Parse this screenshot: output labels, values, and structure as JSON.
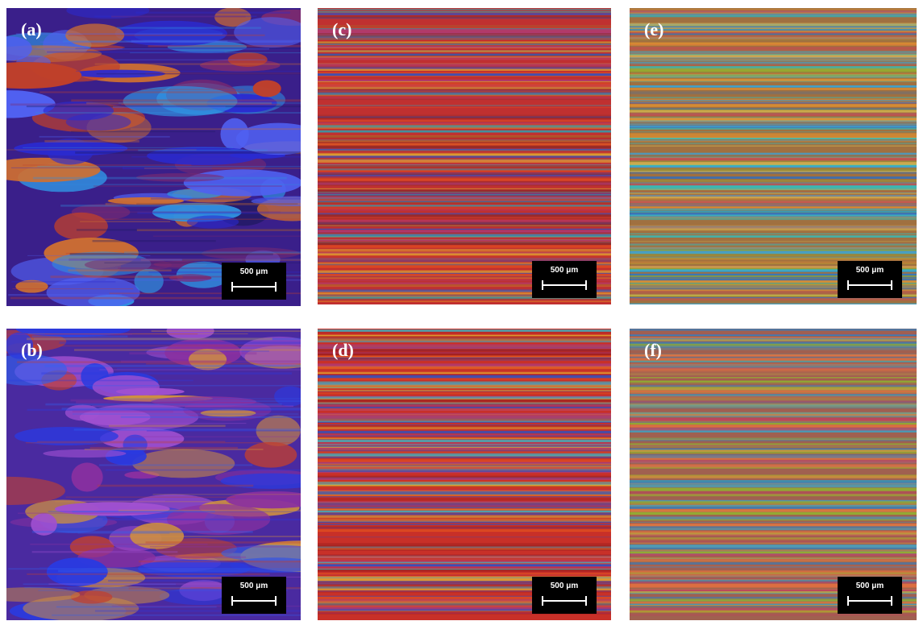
{
  "panels": [
    {
      "label": "(a)",
      "scale_bar": "500 μm"
    },
    {
      "label": "(b)",
      "scale_bar": "500 μm"
    },
    {
      "label": "(c)",
      "scale_bar": "500 μm"
    },
    {
      "label": "(d)",
      "scale_bar": "500 μm"
    },
    {
      "label": "(e)",
      "scale_bar": "500 μm"
    },
    {
      "label": "(f)",
      "scale_bar": "500 μm"
    }
  ]
}
